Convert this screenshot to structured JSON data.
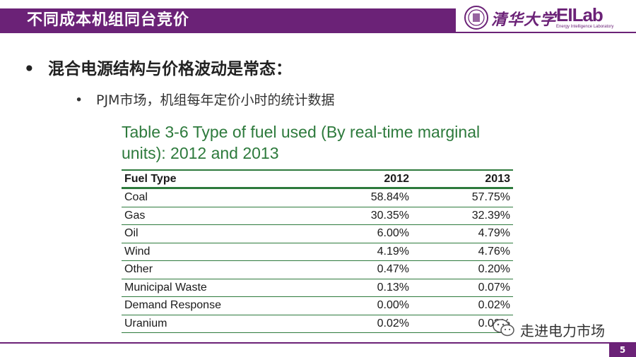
{
  "header": {
    "title": "不同成本机组同台竞价",
    "university_name": "清华大学",
    "lab_logo": "EILab",
    "lab_subtitle": "Energy Intelligence Laboratory"
  },
  "content": {
    "bullet_1": "混合电源结构与价格波动是常态：",
    "bullet_2": "PJM市场，机组每年定价小时的统计数据",
    "bullet_symbol": "•"
  },
  "table": {
    "caption": "Table 3-6 Type of fuel used (By real-time marginal units): 2012 and 2013",
    "headers": [
      "Fuel Type",
      "2012",
      "2013"
    ],
    "rows": [
      [
        "Coal",
        "58.84%",
        "57.75%"
      ],
      [
        "Gas",
        "30.35%",
        "32.39%"
      ],
      [
        "Oil",
        "6.00%",
        "4.79%"
      ],
      [
        "Wind",
        "4.19%",
        "4.76%"
      ],
      [
        "Other",
        "0.47%",
        "0.20%"
      ],
      [
        "Municipal Waste",
        "0.13%",
        "0.07%"
      ],
      [
        "Demand Response",
        "0.00%",
        "0.02%"
      ],
      [
        "Uranium",
        "0.02%",
        "0.02%"
      ]
    ]
  },
  "footer": {
    "wechat_label": "走进电力市场",
    "wechat_icon": "wechat-icon",
    "page_number": "5"
  },
  "colors": {
    "brand_purple": "#6b2277",
    "table_green": "#2d7a3c"
  }
}
